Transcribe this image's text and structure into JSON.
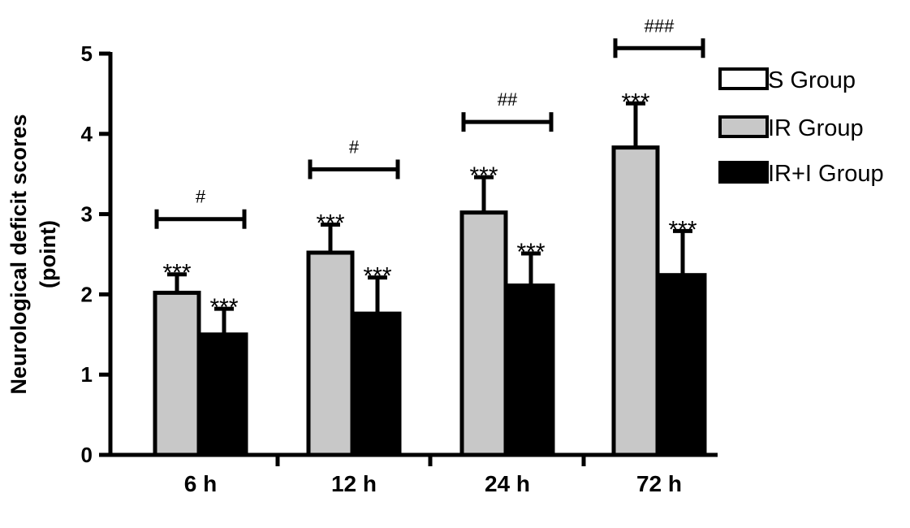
{
  "chart_data": {
    "type": "bar",
    "ylabel_line1": "Neurological deficit scores",
    "ylabel_line2": "(point)",
    "xlabel": "",
    "ylim": [
      0,
      5
    ],
    "yticks": [
      "0",
      "1",
      "2",
      "3",
      "4",
      "5"
    ],
    "categories": [
      "6 h",
      "12 h",
      "24 h",
      "72 h"
    ],
    "series": [
      {
        "name": "S Group",
        "color": "#ffffff",
        "values": [
          0,
          0,
          0,
          0
        ],
        "errors": [
          0,
          0,
          0,
          0
        ],
        "marks": [
          "",
          "",
          "",
          ""
        ]
      },
      {
        "name": "IR Group",
        "color": "#c8c8c8",
        "values": [
          2.02,
          2.52,
          3.02,
          3.83
        ],
        "errors": [
          0.23,
          0.35,
          0.44,
          0.55
        ],
        "marks": [
          "***",
          "***",
          "***",
          "***"
        ]
      },
      {
        "name": "IR+I Group",
        "color": "#000000",
        "values": [
          1.5,
          1.76,
          2.11,
          2.24
        ],
        "errors": [
          0.32,
          0.45,
          0.4,
          0.55
        ],
        "marks": [
          "***",
          "***",
          "***",
          "***"
        ]
      }
    ],
    "comparisons": [
      "#",
      "#",
      "##",
      "###"
    ],
    "legend_position": "top-right",
    "grid": false
  }
}
